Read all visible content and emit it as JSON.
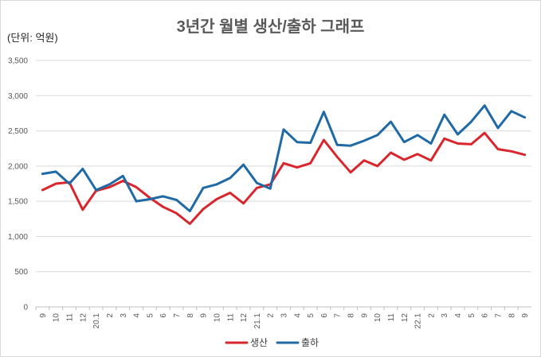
{
  "chart_data": {
    "type": "line",
    "title": "3년간 월별 생산/출하 그래프",
    "unit_label": "(단위: 억원)",
    "xlabel": "",
    "ylabel": "",
    "ylim": [
      0,
      3500
    ],
    "yticks": [
      0,
      500,
      1000,
      1500,
      2000,
      2500,
      3000,
      3500
    ],
    "ytick_labels": [
      "0",
      "500",
      "1,000",
      "1,500",
      "2,000",
      "2,500",
      "3,000",
      "3,500"
    ],
    "grid": true,
    "legend_position": "bottom",
    "categories": [
      "9",
      "10",
      "11",
      "12",
      "20.1",
      "2",
      "3",
      "4",
      "5",
      "6",
      "7",
      "8",
      "9",
      "10",
      "11",
      "12",
      "21.1",
      "2",
      "3",
      "4",
      "5",
      "6",
      "7",
      "8",
      "9",
      "10",
      "11",
      "12",
      "22.1",
      "2",
      "3",
      "4",
      "5",
      "6",
      "7",
      "8",
      "9"
    ],
    "series": [
      {
        "name": "생산",
        "color": "#d9262c",
        "values": [
          1660,
          1750,
          1770,
          1380,
          1650,
          1700,
          1790,
          1700,
          1550,
          1420,
          1330,
          1180,
          1390,
          1530,
          1620,
          1470,
          1690,
          1740,
          2040,
          1980,
          2040,
          2370,
          2130,
          1910,
          2080,
          2000,
          2190,
          2090,
          2170,
          2080,
          2390,
          2320,
          2310,
          2470,
          2240,
          2210,
          2160
        ]
      },
      {
        "name": "출하",
        "color": "#1f6aa5",
        "values": [
          1890,
          1920,
          1750,
          1960,
          1660,
          1740,
          1860,
          1500,
          1530,
          1570,
          1520,
          1360,
          1690,
          1740,
          1830,
          2020,
          1760,
          1680,
          2520,
          2340,
          2330,
          2770,
          2300,
          2290,
          2360,
          2440,
          2630,
          2340,
          2440,
          2320,
          2730,
          2450,
          2630,
          2860,
          2540,
          2780,
          2690
        ]
      }
    ]
  }
}
